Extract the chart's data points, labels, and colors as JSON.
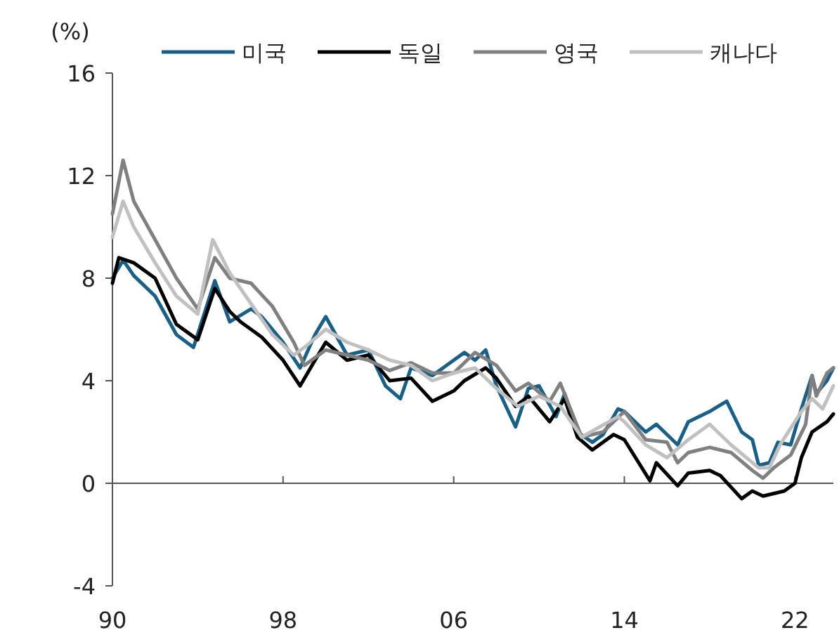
{
  "chart_data": {
    "type": "line",
    "ylabel": "(%)",
    "legend": "top",
    "xlim": [
      1990,
      2023.8
    ],
    "ylim": [
      -4,
      16
    ],
    "xticks": [
      {
        "value": 1990,
        "label": "90"
      },
      {
        "value": 1998,
        "label": "98"
      },
      {
        "value": 2006,
        "label": "06"
      },
      {
        "value": 2014,
        "label": "14"
      },
      {
        "value": 2022,
        "label": "22"
      }
    ],
    "yticks": [
      -4,
      0,
      4,
      8,
      12,
      16
    ],
    "series": [
      {
        "name": "미국",
        "color": "#1a5f86",
        "x": [
          1990,
          1990.5,
          1991,
          1992,
          1993,
          1993.8,
          1994.8,
          1995.5,
          1996.5,
          1997,
          1998,
          1998.8,
          1999.5,
          2000,
          2001,
          2002,
          2002.8,
          2003.5,
          2004,
          2005,
          2006.5,
          2007,
          2007.5,
          2008,
          2008.9,
          2009.5,
          2010,
          2010.8,
          2011.2,
          2011.8,
          2012.5,
          2013,
          2013.7,
          2014,
          2015,
          2015.5,
          2016.5,
          2017,
          2018,
          2018.8,
          2019.5,
          2020,
          2020.3,
          2020.8,
          2021.2,
          2021.8,
          2022.3,
          2022.8,
          2023,
          2023.5,
          2023.8
        ],
        "values": [
          8.0,
          8.7,
          8.1,
          7.3,
          5.8,
          5.3,
          7.9,
          6.3,
          6.8,
          6.5,
          5.5,
          4.5,
          5.8,
          6.5,
          5.0,
          5.2,
          3.8,
          3.3,
          4.5,
          4.2,
          5.1,
          4.8,
          5.2,
          3.8,
          2.2,
          3.7,
          3.8,
          2.6,
          3.5,
          2.0,
          1.6,
          1.9,
          2.9,
          2.8,
          2.0,
          2.3,
          1.5,
          2.4,
          2.8,
          3.2,
          2.0,
          1.7,
          0.7,
          0.8,
          1.6,
          1.5,
          2.9,
          4.2,
          3.5,
          4.0,
          4.5
        ]
      },
      {
        "name": "독일",
        "color": "#000000",
        "x": [
          1990,
          1990.3,
          1991,
          1992,
          1993,
          1994,
          1994.8,
          1995.5,
          1996,
          1997,
          1998,
          1998.8,
          1999.5,
          2000,
          2001,
          2002,
          2003,
          2004,
          2005,
          2006,
          2006.5,
          2007.5,
          2008,
          2008.9,
          2009.5,
          2010.5,
          2011.2,
          2011.8,
          2012.5,
          2013.5,
          2014,
          2015.2,
          2015.5,
          2016.5,
          2017,
          2018,
          2018.5,
          2019.5,
          2020,
          2020.5,
          2021.5,
          2022,
          2022.3,
          2022.8,
          2023.5,
          2023.8
        ],
        "values": [
          7.8,
          8.8,
          8.6,
          8.0,
          6.2,
          5.6,
          7.6,
          6.7,
          6.3,
          5.7,
          4.8,
          3.8,
          4.8,
          5.5,
          4.8,
          5.0,
          4.0,
          4.1,
          3.2,
          3.6,
          4.0,
          4.5,
          4.1,
          3.0,
          3.4,
          2.4,
          3.3,
          1.8,
          1.3,
          1.9,
          1.7,
          0.1,
          0.8,
          -0.1,
          0.4,
          0.5,
          0.3,
          -0.6,
          -0.3,
          -0.5,
          -0.3,
          0.0,
          1.0,
          2.0,
          2.4,
          2.7
        ]
      },
      {
        "name": "영국",
        "color": "#808080",
        "x": [
          1990,
          1990.5,
          1991,
          1992,
          1993,
          1994,
          1994.8,
          1995.5,
          1996.5,
          1997.5,
          1998.5,
          1999,
          2000,
          2001,
          2002,
          2003,
          2004,
          2005,
          2006,
          2007,
          2008,
          2008.9,
          2009.5,
          2010.5,
          2011,
          2012,
          2013,
          2014,
          2015,
          2016,
          2016.5,
          2017,
          2018,
          2019,
          2020,
          2020.5,
          2021,
          2021.8,
          2022.5,
          2022.8,
          2023,
          2023.5,
          2023.8
        ],
        "values": [
          10.5,
          12.6,
          11.0,
          9.5,
          8.0,
          6.8,
          8.8,
          8.0,
          7.8,
          6.9,
          5.5,
          4.6,
          5.2,
          5.0,
          4.8,
          4.4,
          4.7,
          4.3,
          4.3,
          5.1,
          4.6,
          3.6,
          3.9,
          3.2,
          3.9,
          1.8,
          2.0,
          2.8,
          1.7,
          1.6,
          0.8,
          1.2,
          1.4,
          1.2,
          0.5,
          0.2,
          0.6,
          1.1,
          2.3,
          4.2,
          3.4,
          4.3,
          4.5
        ]
      },
      {
        "name": "캐나다",
        "color": "#c0c0c0",
        "x": [
          1990,
          1990.5,
          1991,
          1992,
          1993,
          1994,
          1994.7,
          1995.5,
          1996.5,
          1997.5,
          1998.5,
          1999,
          2000,
          2001,
          2002,
          2003,
          2004,
          2005,
          2006,
          2007,
          2008,
          2009,
          2010,
          2011,
          2012,
          2013.7,
          2014,
          2015,
          2016,
          2017,
          2018,
          2019,
          2020.3,
          2020.8,
          2021.3,
          2022.3,
          2022.8,
          2023.3,
          2023.8
        ],
        "values": [
          9.6,
          11.0,
          10.0,
          8.6,
          7.3,
          6.6,
          9.5,
          8.2,
          7.0,
          5.8,
          5.0,
          5.3,
          6.0,
          5.5,
          5.2,
          4.8,
          4.6,
          4.0,
          4.3,
          4.5,
          3.7,
          3.0,
          3.4,
          3.0,
          1.8,
          2.6,
          2.4,
          1.5,
          1.0,
          1.7,
          2.3,
          1.5,
          0.6,
          0.6,
          1.5,
          2.8,
          3.3,
          2.9,
          3.8
        ]
      }
    ]
  }
}
